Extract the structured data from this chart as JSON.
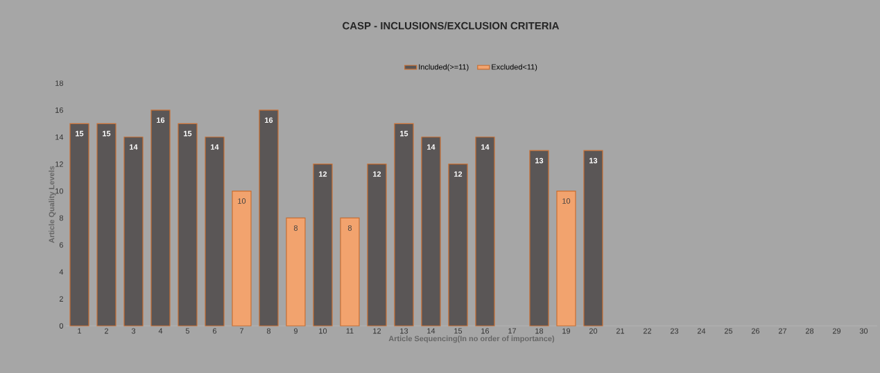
{
  "chart_data": {
    "type": "bar",
    "title": "CASP - INCLUSIONS/EXCLUSION CRITERIA",
    "xlabel": "Article Sequencing(In no order of importance)",
    "ylabel": "Article Quality Levels",
    "categories": [
      "1",
      "2",
      "3",
      "4",
      "5",
      "6",
      "7",
      "8",
      "9",
      "10",
      "11",
      "12",
      "13",
      "14",
      "15",
      "16",
      "17",
      "18",
      "19",
      "20",
      "21",
      "22",
      "23",
      "24",
      "25",
      "26",
      "27",
      "28",
      "29",
      "30"
    ],
    "series": [
      {
        "name": "Included(>=11)",
        "color": "#5a5656",
        "values": [
          15,
          15,
          14,
          16,
          15,
          14,
          null,
          16,
          null,
          12,
          null,
          12,
          15,
          14,
          12,
          14,
          null,
          13,
          null,
          13,
          null,
          null,
          null,
          null,
          null,
          null,
          null,
          null,
          null,
          null
        ]
      },
      {
        "name": "Excluded<11)",
        "color": "#f2a36e",
        "values": [
          null,
          null,
          null,
          null,
          null,
          null,
          10,
          null,
          8,
          null,
          8,
          null,
          null,
          null,
          null,
          null,
          null,
          null,
          10,
          null,
          null,
          null,
          null,
          null,
          null,
          null,
          null,
          null,
          null,
          null
        ]
      }
    ],
    "ylim": [
      0,
      18
    ],
    "yticks": [
      0,
      2,
      4,
      6,
      8,
      10,
      12,
      14,
      16,
      18
    ],
    "data_labels": true,
    "legend": "top"
  }
}
